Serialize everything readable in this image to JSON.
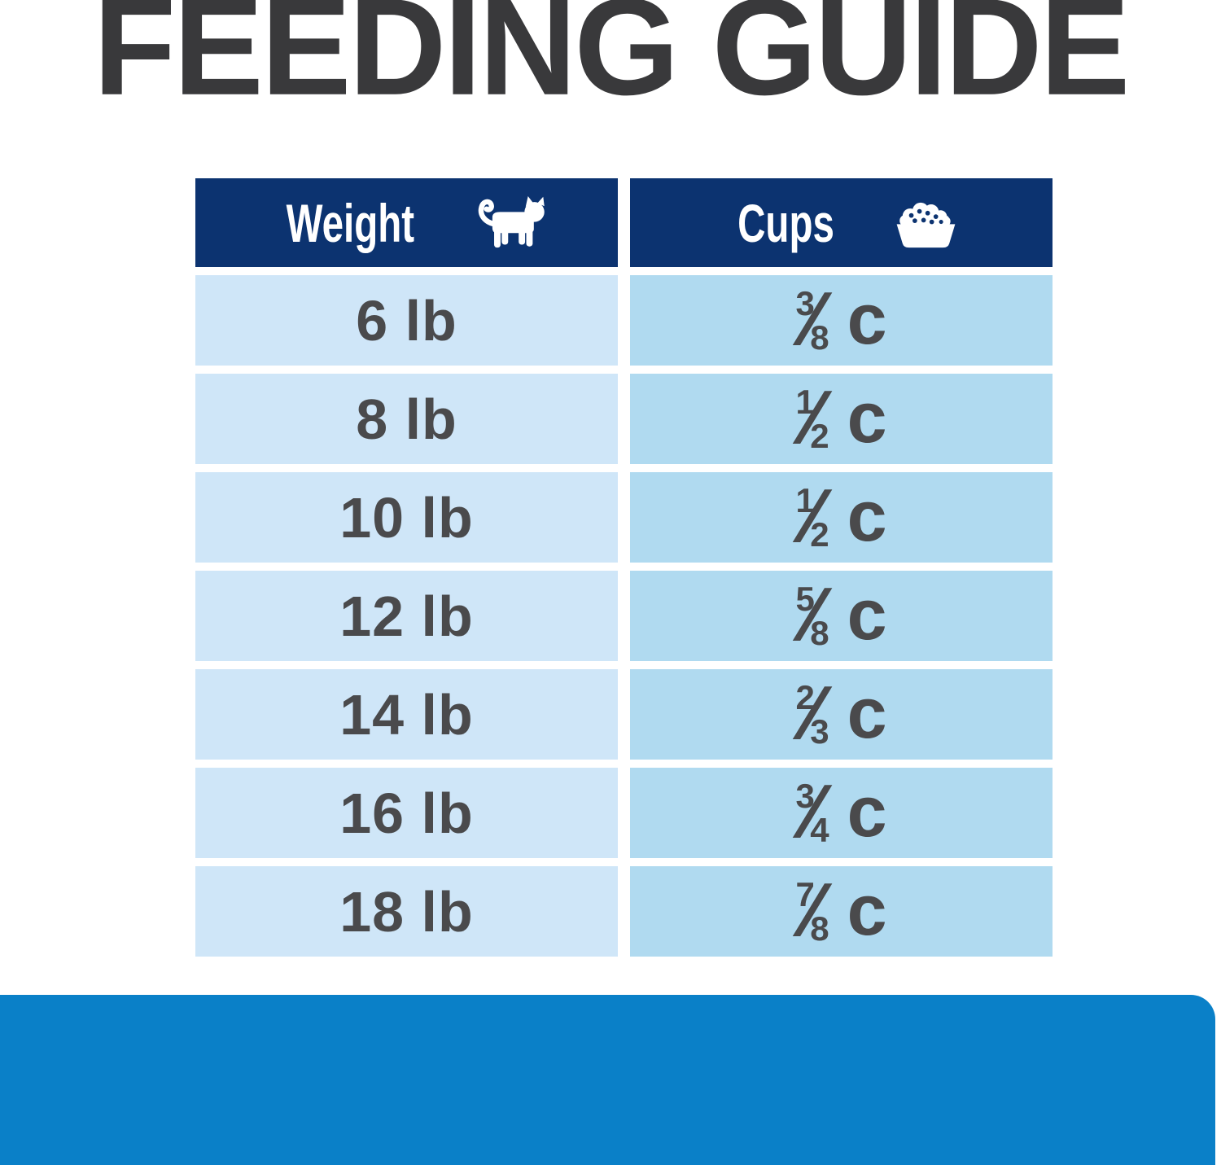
{
  "title": {
    "text": "FEEDING GUIDE",
    "color": "#39393b"
  },
  "table": {
    "header": {
      "weight_label": "Weight",
      "weight_icon": "cat-icon",
      "cups_label": "Cups",
      "cups_icon": "food-bowl-icon",
      "bg": "#0c3370",
      "text_color": "#ffffff"
    },
    "rows": [
      {
        "weight": "6 lb",
        "cups": {
          "numerator": "3",
          "denominator": "8",
          "unit": "c"
        }
      },
      {
        "weight": "8 lb",
        "cups": {
          "numerator": "1",
          "denominator": "2",
          "unit": "c"
        }
      },
      {
        "weight": "10 lb",
        "cups": {
          "numerator": "1",
          "denominator": "2",
          "unit": "c"
        }
      },
      {
        "weight": "12 lb",
        "cups": {
          "numerator": "5",
          "denominator": "8",
          "unit": "c"
        }
      },
      {
        "weight": "14 lb",
        "cups": {
          "numerator": "2",
          "denominator": "3",
          "unit": "c"
        }
      },
      {
        "weight": "16 lb",
        "cups": {
          "numerator": "3",
          "denominator": "4",
          "unit": "c"
        }
      },
      {
        "weight": "18 lb",
        "cups": {
          "numerator": "7",
          "denominator": "8",
          "unit": "c"
        }
      }
    ],
    "colors": {
      "weight_cell_bg": "#cfe6f8",
      "cups_cell_bg": "#b0daf0",
      "cell_text": "#4a4a4c"
    }
  },
  "footer_bar": {
    "color": "#0a80c8"
  }
}
